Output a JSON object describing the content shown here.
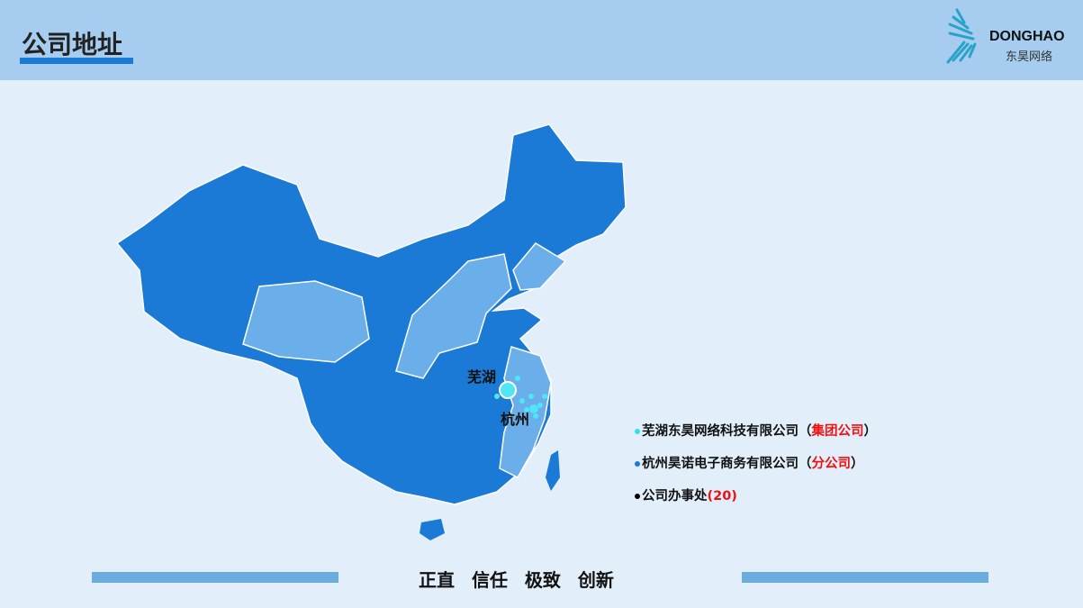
{
  "header": {
    "title": "公司地址"
  },
  "logo": {
    "name_en": "DONGHAO",
    "name_cn": "东昊网络"
  },
  "map": {
    "cities": [
      "芜湖",
      "杭州"
    ],
    "base_color": "#1a7ad6",
    "highlight_color": "#6aaeea",
    "marker_color": "#4fe6f5"
  },
  "legend": [
    {
      "text": "芜湖东昊网络科技有限公司（",
      "tag": "集团公司",
      "tail": "）",
      "dot_color": "#2ee0f5"
    },
    {
      "text": "杭州昊诺电子商务有限公司（",
      "tag": "分公司",
      "tail": "）",
      "dot_color": "#1a7ad6"
    },
    {
      "text": "公司办事处",
      "tag": "(20)",
      "tail": "",
      "dot_color": "#000000"
    }
  ],
  "footer": {
    "motto": "正直 信任 极致 创新"
  }
}
